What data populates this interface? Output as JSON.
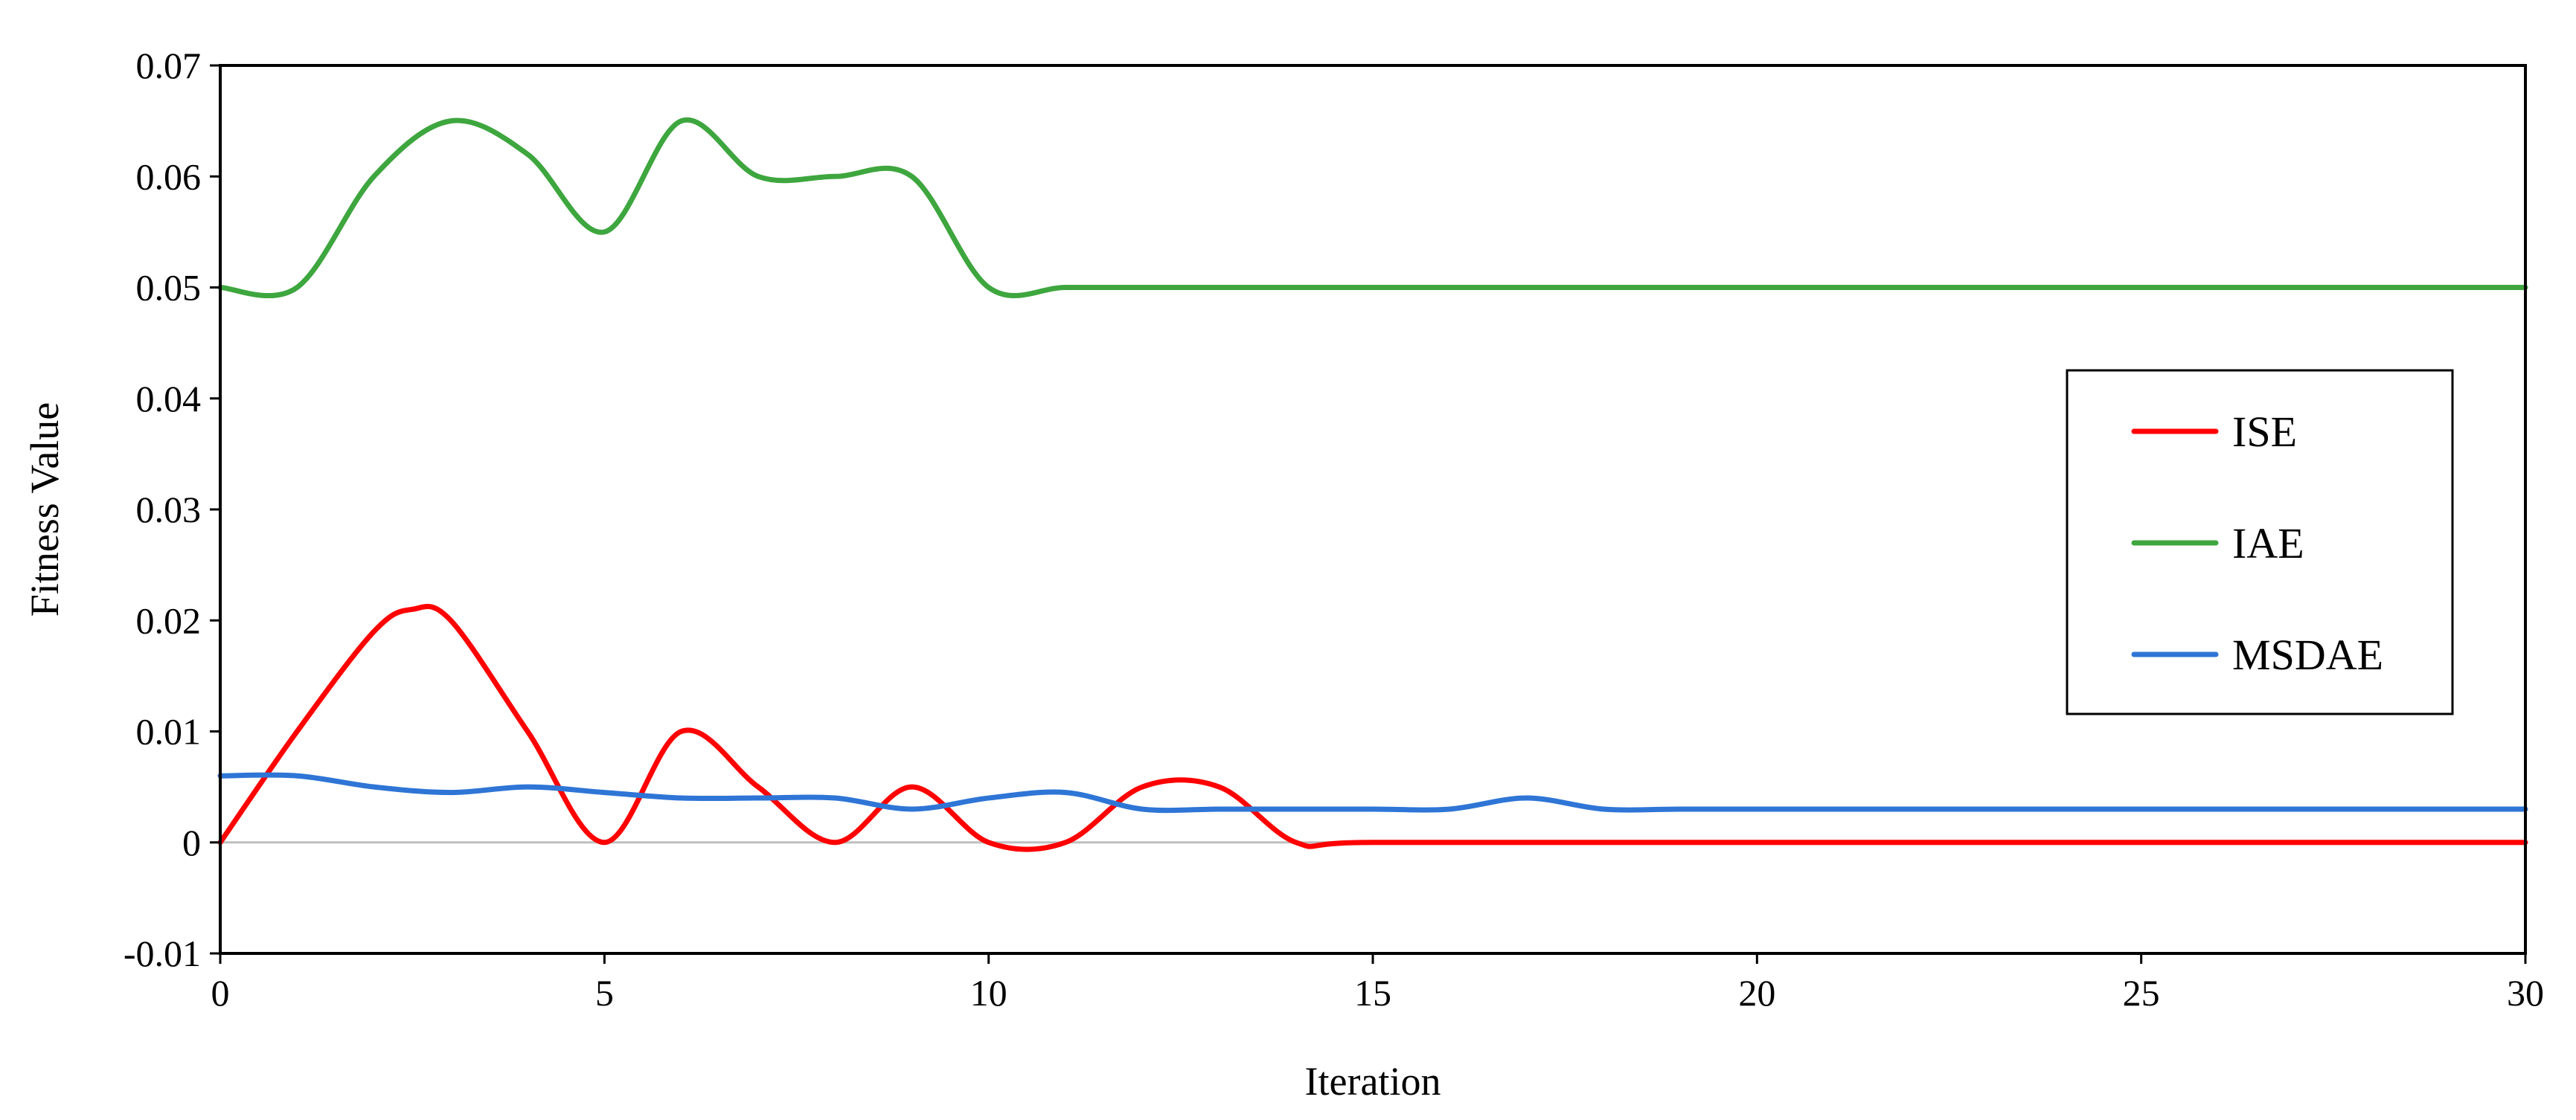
{
  "chart_data": {
    "type": "line",
    "title": "",
    "xlabel": "Iteration",
    "ylabel": "Fitness Value",
    "xlim": [
      0,
      30
    ],
    "ylim": [
      -0.01,
      0.07
    ],
    "x_ticks": [
      0,
      5,
      10,
      15,
      20,
      25,
      30
    ],
    "x_tick_labels": [
      "0",
      "5",
      "10",
      "15",
      "20",
      "25",
      "30"
    ],
    "y_ticks": [
      -0.01,
      0,
      0.01,
      0.02,
      0.03,
      0.04,
      0.05,
      0.06,
      0.07
    ],
    "y_tick_labels": [
      "-0.01",
      "0",
      "0.01",
      "0.02",
      "0.03",
      "0.04",
      "0.05",
      "0.06",
      "0.07"
    ],
    "grid": false,
    "zero_line": true,
    "legend_position": "right",
    "series": [
      {
        "name": "ISE",
        "color": "#ff0000",
        "x": [
          0,
          1,
          2,
          2.5,
          3,
          4,
          5,
          6,
          7,
          8,
          9,
          10,
          11,
          12,
          13,
          14,
          15,
          20,
          25,
          30
        ],
        "y": [
          0,
          0.01,
          0.019,
          0.021,
          0.02,
          0.01,
          0,
          0.01,
          0.005,
          0,
          0.005,
          0,
          0,
          0.005,
          0.005,
          0,
          0,
          0,
          0,
          0
        ]
      },
      {
        "name": "IAE",
        "color": "#3ea63e",
        "x": [
          0,
          1,
          2,
          3,
          4,
          5,
          6,
          7,
          8,
          9,
          10,
          11,
          12,
          15,
          20,
          25,
          30
        ],
        "y": [
          0.05,
          0.05,
          0.06,
          0.065,
          0.062,
          0.055,
          0.065,
          0.06,
          0.06,
          0.06,
          0.05,
          0.05,
          0.05,
          0.05,
          0.05,
          0.05,
          0.05
        ]
      },
      {
        "name": "MSDAE",
        "color": "#2e75d6",
        "x": [
          0,
          1,
          2,
          3,
          4,
          5,
          6,
          7,
          8,
          9,
          10,
          11,
          12,
          13,
          14,
          15,
          16,
          17,
          18,
          19,
          20,
          25,
          30
        ],
        "y": [
          0.006,
          0.006,
          0.005,
          0.0045,
          0.005,
          0.0045,
          0.004,
          0.004,
          0.004,
          0.003,
          0.004,
          0.0045,
          0.003,
          0.003,
          0.003,
          0.003,
          0.003,
          0.004,
          0.003,
          0.003,
          0.003,
          0.003,
          0.003
        ]
      }
    ]
  }
}
